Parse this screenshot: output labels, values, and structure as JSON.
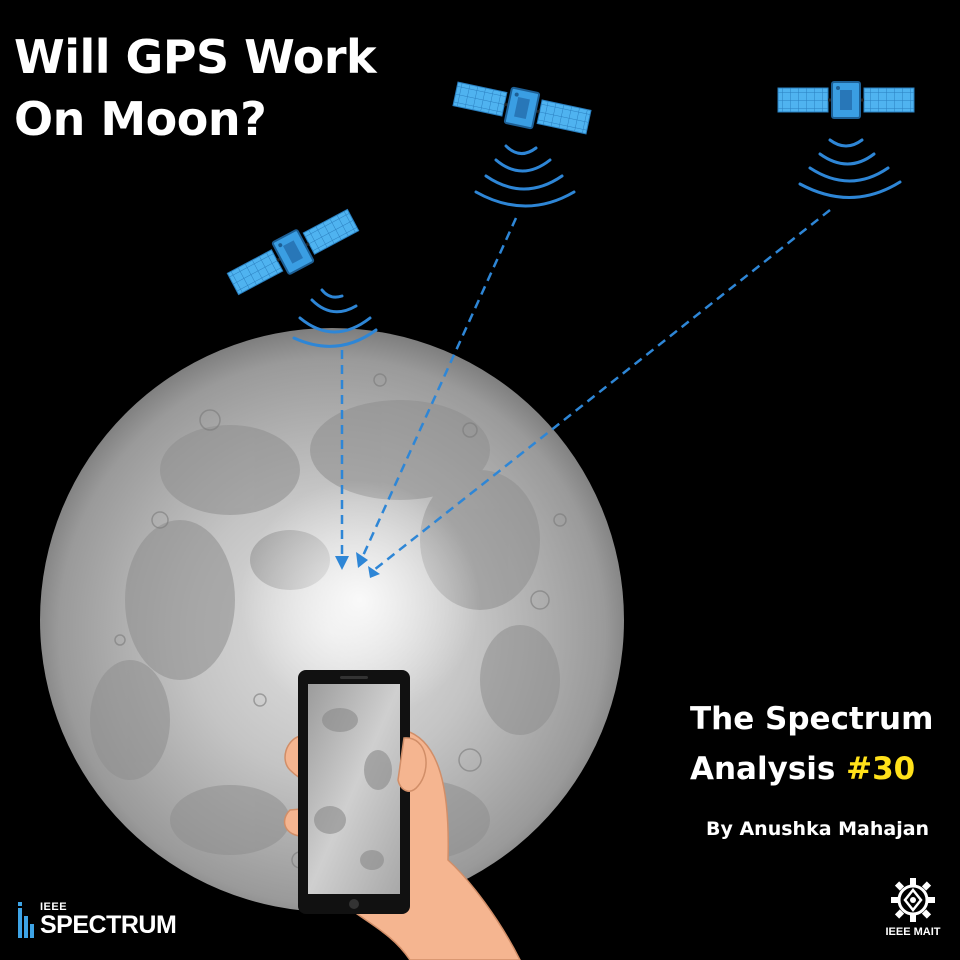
{
  "title": {
    "line1": "Will GPS Work",
    "line2": "On Moon?"
  },
  "series": {
    "line1": "The Spectrum",
    "line2_prefix": "Analysis ",
    "number": "#30"
  },
  "byline": "By Anushka Mahajan",
  "brand": {
    "top": "IEEE",
    "bottom": "SPECTRUM"
  },
  "club": {
    "label": "IEEE MAIT"
  },
  "colors": {
    "background": "#000000",
    "accent_yellow": "#ffe11a",
    "satellite_blue": "#3ea4e6",
    "signal_blue": "#2e86d6",
    "moon_gray": "#b9b9b9",
    "hand_skin": "#f5b590"
  },
  "icons": [
    "satellite-icon",
    "smartphone-icon",
    "hand-icon",
    "moon-icon",
    "gear-icon"
  ]
}
